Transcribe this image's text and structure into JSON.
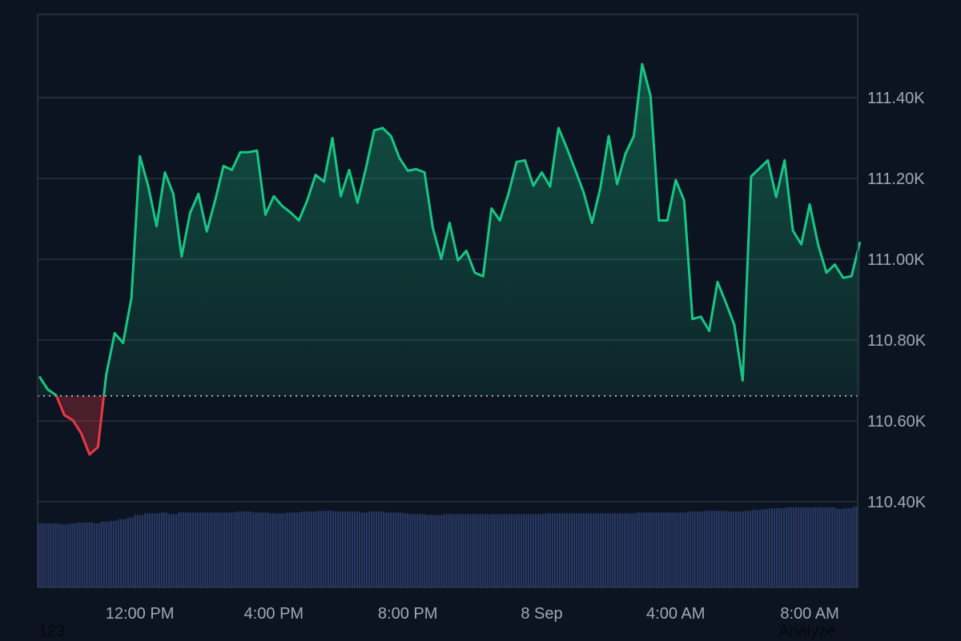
{
  "chart_data": {
    "type": "area",
    "series_start": "7 Sep 09:00",
    "interval_minutes": 15,
    "xlim": [
      "7 Sep 08:57",
      "8 Sep 09:26"
    ],
    "ylim": [
      110188,
      111606
    ],
    "baseline": 110662,
    "price": [
      110710,
      110678,
      110664,
      110614,
      110602,
      110569,
      110517,
      110535,
      110715,
      110817,
      110793,
      110904,
      111255,
      111182,
      111082,
      111215,
      111162,
      111007,
      111114,
      111162,
      111069,
      111146,
      111231,
      111221,
      111265,
      111265,
      111269,
      111110,
      111156,
      111132,
      111116,
      111096,
      111146,
      111209,
      111192,
      111300,
      111156,
      111221,
      111140,
      111225,
      111319,
      111325,
      111305,
      111251,
      111219,
      111223,
      111215,
      111077,
      111001,
      111090,
      110997,
      111021,
      110967,
      110958,
      111126,
      111096,
      111160,
      111241,
      111245,
      111182,
      111215,
      111180,
      111325,
      111275,
      111221,
      111166,
      111090,
      111176,
      111305,
      111186,
      111261,
      111305,
      111483,
      111404,
      111096,
      111096,
      111196,
      111146,
      110852,
      110858,
      110823,
      110944,
      110892,
      110838,
      110700,
      111205,
      111225,
      111245,
      111154,
      111245,
      111071,
      111037,
      111136,
      111037,
      110967,
      110987,
      110954,
      110958,
      111043
    ],
    "volume": [
      76,
      76,
      76,
      75,
      76,
      77,
      77,
      76,
      78,
      79,
      81,
      83,
      86,
      88,
      88,
      89,
      87,
      89,
      89,
      89,
      89,
      89,
      89,
      89,
      90,
      90,
      89,
      89,
      88,
      88,
      89,
      89,
      90,
      90,
      91,
      91,
      90,
      90,
      90,
      89,
      90,
      90,
      89,
      89,
      88,
      87,
      87,
      86,
      86,
      87,
      87,
      87,
      87,
      87,
      87,
      87,
      87,
      87,
      87,
      87,
      87,
      88,
      88,
      88,
      88,
      88,
      88,
      88,
      88,
      88,
      88,
      88,
      89,
      89,
      89,
      89,
      89,
      89,
      90,
      90,
      91,
      91,
      91,
      90,
      90,
      91,
      92,
      93,
      94,
      94,
      95,
      95,
      95,
      95,
      95,
      95,
      93,
      94,
      96
    ],
    "y_ticks": [
      {
        "value": 111400,
        "label": "111.40K"
      },
      {
        "value": 111200,
        "label": "111.20K"
      },
      {
        "value": 111000,
        "label": "111.00K"
      },
      {
        "value": 110800,
        "label": "110.80K"
      },
      {
        "value": 110600,
        "label": "110.60K"
      },
      {
        "value": 110400,
        "label": "110.40K"
      }
    ],
    "x_ticks": [
      {
        "time": "7 Sep 12:00",
        "label": "12:00 PM"
      },
      {
        "time": "7 Sep 16:00",
        "label": "4:00 PM"
      },
      {
        "time": "7 Sep 20:00",
        "label": "8:00 PM"
      },
      {
        "time": "8 Sep 00:00",
        "label": "8 Sep"
      },
      {
        "time": "8 Sep 04:00",
        "label": "4:00 AM"
      },
      {
        "time": "8 Sep 08:00",
        "label": "8:00 AM"
      }
    ],
    "grid": true,
    "colors": {
      "up": "#16c784",
      "down": "#ea3943",
      "volume": "#2a3a66",
      "grid": "#2a3142",
      "background": "#0d1421"
    }
  },
  "footer": {
    "left_text": "123",
    "right_text": "Analyze"
  }
}
